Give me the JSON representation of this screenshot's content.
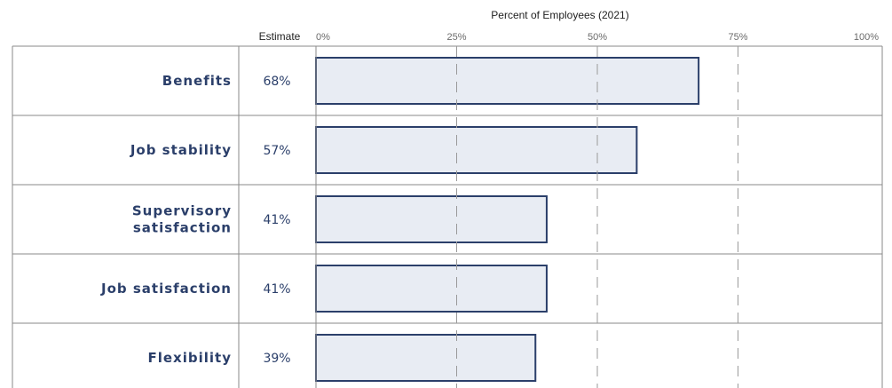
{
  "chart_data": {
    "type": "bar",
    "orientation": "horizontal",
    "title": "Percent of Employees (2021)",
    "estimate_header": "Estimate",
    "categories": [
      [
        "Benefits"
      ],
      [
        "Job stability"
      ],
      [
        "Supervisory",
        "satisfaction"
      ],
      [
        "Job satisfaction"
      ],
      [
        "Flexibility"
      ]
    ],
    "values": [
      68,
      57,
      41,
      41,
      39
    ],
    "estimate_labels": [
      "68%",
      "57%",
      "41%",
      "41%",
      "39%"
    ],
    "x_ticks": [
      0,
      25,
      50,
      75,
      100
    ],
    "x_tick_labels": [
      "0%",
      "25%",
      "50%",
      "75%",
      "100%"
    ],
    "xlim": [
      0,
      100
    ],
    "grid": "dashed vertical",
    "colors": {
      "bar_fill": "#e8ecf3",
      "bar_stroke": "#2b3f6a",
      "label": "#2b3f6a",
      "row_line": "#8a8a8a",
      "grid": "#9a9a9a"
    }
  }
}
